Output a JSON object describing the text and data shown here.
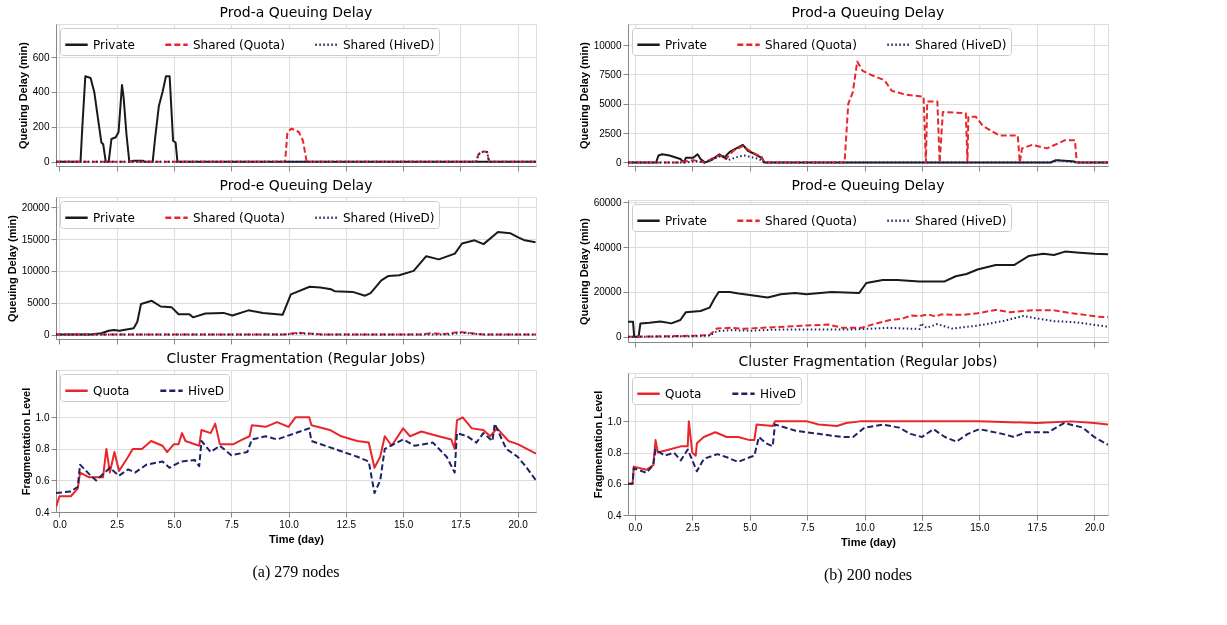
{
  "chart_data": [
    {
      "type": "line",
      "title": "Prod-a Queuing Delay",
      "ylabel": "Queuing Delay (min)",
      "xlim": [
        -0.15,
        20.8
      ],
      "ylim": [
        -25,
        790
      ],
      "xticks": [
        0,
        2.5,
        5,
        7.5,
        10,
        12.5,
        15,
        17.5,
        20
      ],
      "yticks": [
        0,
        200,
        400,
        600
      ],
      "tick_labels": "y",
      "grid": true,
      "legend": "top left",
      "series": [
        {
          "name": "Private",
          "color": "#1a1a1a",
          "line_style": "solid",
          "x": [
            -0.15,
            0.92,
            1.0,
            1.13,
            1.36,
            1.52,
            1.68,
            1.83,
            1.91,
            2.02,
            2.15,
            2.27,
            2.46,
            2.58,
            2.73,
            2.8,
            2.93,
            3.05,
            3.24,
            3.63,
            3.71,
            4.07,
            4.18,
            4.34,
            4.5,
            4.65,
            4.81,
            4.96,
            5.07,
            5.15,
            20.8
          ],
          "values": [
            0,
            0,
            200,
            490,
            480,
            400,
            250,
            110,
            100,
            0,
            0,
            130,
            140,
            170,
            440,
            370,
            150,
            0,
            5,
            5,
            0,
            0,
            140,
            320,
            400,
            490,
            490,
            120,
            110,
            0,
            0
          ]
        },
        {
          "name": "Shared (Quota)",
          "color": "#e8262b",
          "line_style": "dashed",
          "x": [
            -0.15,
            9.85,
            9.95,
            10.13,
            10.45,
            10.63,
            10.79,
            18.2,
            18.28,
            18.43,
            18.67,
            18.75,
            20.8
          ],
          "values": [
            0,
            0,
            170,
            190,
            170,
            120,
            0,
            0,
            40,
            60,
            55,
            0,
            0
          ]
        },
        {
          "name": "Shared (HiveD)",
          "color": "#1f2366",
          "line_style": "dotted",
          "x": [
            -0.15,
            18.2,
            18.28,
            18.43,
            18.67,
            18.75,
            20.8
          ],
          "values": [
            0,
            0,
            40,
            55,
            55,
            0,
            0
          ]
        }
      ]
    },
    {
      "type": "line",
      "title": "Prod-e Queuing Delay",
      "ylabel": "Queuing Delay (min)",
      "xlim": [
        -0.15,
        20.8
      ],
      "ylim": [
        -700,
        21600
      ],
      "xticks": [
        0,
        2.5,
        5,
        7.5,
        10,
        12.5,
        15,
        17.5,
        20
      ],
      "yticks": [
        0,
        5000,
        10000,
        15000,
        20000
      ],
      "tick_labels": "y",
      "grid": true,
      "legend": "top left",
      "series": [
        {
          "name": "Private",
          "color": "#1a1a1a",
          "line_style": "solid",
          "x": [
            -0.15,
            1.36,
            1.83,
            2.15,
            2.38,
            2.62,
            3.24,
            3.4,
            3.56,
            4.03,
            4.42,
            4.89,
            5.2,
            5.67,
            5.83,
            6.37,
            7.16,
            7.55,
            8.25,
            8.88,
            9.74,
            10.1,
            10.92,
            11.39,
            11.86,
            12.01,
            12.8,
            13.34,
            13.58,
            14.05,
            14.36,
            14.83,
            15.46,
            16.01,
            16.56,
            17.26,
            17.57,
            18.12,
            18.51,
            19.14,
            19.69,
            20.0,
            20.31,
            20.78
          ],
          "values": [
            0,
            0,
            200,
            600,
            700,
            600,
            1000,
            2000,
            4800,
            5300,
            4400,
            4300,
            3200,
            3200,
            2700,
            3300,
            3400,
            3000,
            3800,
            3400,
            3100,
            6300,
            7500,
            7400,
            7100,
            6800,
            6700,
            6100,
            6500,
            8500,
            9200,
            9300,
            10000,
            12300,
            11800,
            12700,
            14300,
            14800,
            14200,
            16100,
            15900,
            15300,
            14800,
            14500
          ]
        },
        {
          "name": "Shared (Quota)",
          "color": "#e8262b",
          "line_style": "dashed",
          "x": [
            -0.15,
            9.8,
            10.4,
            11.5,
            15.8,
            16.2,
            16.8,
            17.5,
            18.5,
            20.8
          ],
          "values": [
            0,
            0,
            300,
            0,
            0,
            200,
            100,
            400,
            0,
            0
          ]
        },
        {
          "name": "Shared (HiveD)",
          "color": "#1f2366",
          "line_style": "dotted",
          "x": [
            -0.15,
            9.8,
            10.4,
            11.5,
            17.0,
            17.5,
            18.5,
            20.8
          ],
          "values": [
            0,
            0,
            200,
            0,
            0,
            300,
            0,
            0
          ]
        }
      ]
    },
    {
      "type": "line",
      "title": "Cluster Fragmentation (Regular Jobs)",
      "xlabel": "Time (day)",
      "ylabel": "Fragmentation Level",
      "xlim": [
        -0.15,
        20.8
      ],
      "ylim": [
        0.4,
        1.3
      ],
      "xticks": [
        {
          "value": 0,
          "label": "0.0"
        },
        {
          "value": 2.5,
          "label": "2.5"
        },
        {
          "value": 5,
          "label": "5.0"
        },
        {
          "value": 7.5,
          "label": "7.5"
        },
        {
          "value": 10,
          "label": "10.0"
        },
        {
          "value": 12.5,
          "label": "12.5"
        },
        {
          "value": 15,
          "label": "15.0"
        },
        {
          "value": 17.5,
          "label": "17.5"
        },
        {
          "value": 20,
          "label": "20.0"
        }
      ],
      "yticks": [
        0.4,
        0.6,
        0.8,
        {
          "value": 1,
          "label": "1.0"
        }
      ],
      "grid": true,
      "legend": "top left",
      "annotations": [
        "(a)  279 nodes"
      ],
      "series": [
        {
          "name": "Quota",
          "color": "#e8262b",
          "line_style": "solid",
          "x": [
            -0.15,
            0.0,
            0.5,
            0.8,
            0.9,
            1.3,
            1.9,
            2.05,
            2.2,
            2.4,
            2.6,
            3.0,
            3.2,
            3.6,
            4.0,
            4.5,
            4.7,
            5.0,
            5.2,
            5.35,
            5.5,
            6.1,
            6.2,
            6.6,
            6.8,
            7.0,
            7.6,
            8.0,
            8.3,
            8.4,
            9.0,
            9.5,
            10.0,
            10.3,
            10.9,
            11.0,
            11.8,
            12.3,
            13.0,
            13.5,
            13.75,
            14.0,
            14.2,
            14.5,
            15.0,
            15.3,
            15.8,
            16.3,
            17.1,
            17.25,
            17.35,
            17.6,
            18.0,
            18.5,
            18.8,
            19.1,
            19.6,
            20.0,
            20.4,
            20.8
          ],
          "values": [
            0.43,
            0.5,
            0.5,
            0.55,
            0.65,
            0.62,
            0.62,
            0.8,
            0.65,
            0.78,
            0.66,
            0.75,
            0.8,
            0.8,
            0.85,
            0.82,
            0.78,
            0.83,
            0.83,
            0.9,
            0.85,
            0.82,
            0.92,
            0.9,
            0.96,
            0.83,
            0.83,
            0.86,
            0.88,
            0.95,
            0.94,
            0.97,
            0.94,
            1.0,
            1.0,
            0.95,
            0.92,
            0.88,
            0.85,
            0.84,
            0.68,
            0.75,
            0.88,
            0.82,
            0.93,
            0.88,
            0.91,
            0.89,
            0.86,
            0.8,
            0.98,
            1.0,
            0.93,
            0.92,
            0.88,
            0.93,
            0.85,
            0.83,
            0.8,
            0.77
          ]
        },
        {
          "name": "HiveD",
          "color": "#1f2366",
          "line_style": "dashed",
          "x": [
            -0.15,
            0.5,
            0.8,
            0.9,
            1.3,
            1.6,
            2.2,
            2.6,
            3.0,
            3.3,
            3.8,
            4.5,
            4.8,
            5.3,
            5.9,
            6.1,
            6.2,
            6.6,
            7.0,
            7.5,
            8.2,
            8.4,
            9.0,
            9.5,
            10.5,
            10.9,
            11.0,
            12.0,
            13.0,
            13.5,
            13.75,
            14.0,
            14.2,
            15.0,
            15.5,
            16.3,
            16.9,
            17.25,
            17.35,
            17.8,
            18.2,
            18.5,
            18.9,
            19.0,
            19.5,
            20.0,
            20.4,
            20.8
          ],
          "values": [
            0.52,
            0.53,
            0.56,
            0.7,
            0.64,
            0.6,
            0.68,
            0.63,
            0.67,
            0.65,
            0.7,
            0.72,
            0.68,
            0.72,
            0.73,
            0.69,
            0.85,
            0.78,
            0.82,
            0.76,
            0.78,
            0.86,
            0.88,
            0.86,
            0.91,
            0.93,
            0.85,
            0.8,
            0.75,
            0.72,
            0.52,
            0.6,
            0.8,
            0.86,
            0.82,
            0.84,
            0.75,
            0.65,
            0.9,
            0.88,
            0.84,
            0.9,
            0.85,
            0.96,
            0.8,
            0.75,
            0.68,
            0.6
          ]
        }
      ]
    },
    {
      "type": "line",
      "title": "Prod-a Queuing Delay",
      "ylabel": "Queuing Delay (min)",
      "xlim": [
        -0.3,
        20.6
      ],
      "ylim": [
        -300,
        11800
      ],
      "xticks": [
        0,
        2.5,
        5,
        7.5,
        10,
        12.5,
        15,
        17.5,
        20
      ],
      "yticks": [
        0,
        2500,
        5000,
        7500,
        10000
      ],
      "tick_labels": "y",
      "grid": true,
      "legend": "top left",
      "series": [
        {
          "name": "Private",
          "color": "#1a1a1a",
          "line_style": "solid",
          "x": [
            -0.3,
            0.92,
            1.03,
            1.19,
            1.51,
            1.98,
            2.14,
            2.22,
            2.54,
            2.73,
            2.86,
            3.05,
            3.33,
            3.68,
            3.89,
            4.13,
            4.7,
            4.92,
            5.24,
            5.52,
            5.63,
            18.1,
            18.33,
            19.05,
            19.3,
            20.6
          ],
          "values": [
            0,
            0,
            600,
            700,
            600,
            300,
            0,
            400,
            400,
            700,
            300,
            0,
            200,
            700,
            400,
            900,
            1500,
            1000,
            700,
            400,
            0,
            0,
            200,
            100,
            0,
            0
          ]
        },
        {
          "name": "Shared (Quota)",
          "color": "#e8262b",
          "line_style": "dashed",
          "x": [
            -0.3,
            1.9,
            2.54,
            3.02,
            3.33,
            3.68,
            3.97,
            4.29,
            4.7,
            5.16,
            5.52,
            5.63,
            9.13,
            9.29,
            9.49,
            9.6,
            9.68,
            9.92,
            10.24,
            10.87,
            11.19,
            11.75,
            12.57,
            12.67,
            12.73,
            13.17,
            13.27,
            13.41,
            14.41,
            14.48,
            14.52,
            14.84,
            15.16,
            15.87,
            16.67,
            16.76,
            16.86,
            17.3,
            17.94,
            18.73,
            19.16,
            19.24,
            20.6
          ],
          "values": [
            0,
            0,
            200,
            0,
            300,
            600,
            300,
            1000,
            1400,
            800,
            500,
            0,
            0,
            5000,
            6000,
            7500,
            8600,
            7800,
            7500,
            7000,
            6100,
            5800,
            5600,
            0,
            5200,
            5200,
            0,
            4300,
            4200,
            0,
            3900,
            3900,
            3100,
            2300,
            2300,
            0,
            1200,
            1500,
            1200,
            1900,
            1900,
            0,
            0
          ]
        },
        {
          "name": "Shared (HiveD)",
          "color": "#1f2366",
          "line_style": "dotted",
          "x": [
            -0.3,
            2.22,
            2.7,
            3.02,
            3.81,
            4.05,
            4.52,
            4.76,
            5.4,
            5.63,
            18.1,
            18.41,
            19.2,
            20.6
          ],
          "values": [
            0,
            0,
            100,
            0,
            600,
            200,
            500,
            600,
            300,
            0,
            0,
            200,
            0,
            0
          ]
        }
      ]
    },
    {
      "type": "line",
      "title": "Prod-e Queuing Delay",
      "ylabel": "Queuing Delay (min)",
      "xlim": [
        -0.3,
        20.6
      ],
      "ylim": [
        -2300,
        61000
      ],
      "xticks": [
        0,
        2.5,
        5,
        7.5,
        10,
        12.5,
        15,
        17.5,
        20
      ],
      "yticks": [
        0,
        20000,
        40000,
        60000
      ],
      "tick_labels": "y",
      "grid": true,
      "legend": "top left",
      "series": [
        {
          "name": "Private",
          "color": "#1a1a1a",
          "line_style": "solid",
          "x": [
            -0.3,
            -0.08,
            -0.03,
            0.16,
            0.24,
            0.63,
            1.11,
            1.59,
            1.98,
            2.22,
            2.86,
            3.25,
            3.46,
            3.65,
            4.13,
            4.52,
            5.24,
            5.79,
            6.35,
            6.98,
            7.46,
            8.57,
            9.76,
            10.08,
            10.79,
            11.43,
            12.38,
            13.49,
            13.97,
            14.44,
            14.92,
            15.71,
            16.51,
            17.14,
            17.78,
            18.25,
            18.73,
            19.37,
            20.0,
            20.6
          ],
          "values": [
            6700,
            6700,
            0,
            0,
            6000,
            6300,
            6800,
            6000,
            7500,
            11000,
            11500,
            13000,
            17000,
            20000,
            20000,
            19300,
            18300,
            17500,
            19000,
            19500,
            19000,
            20000,
            19500,
            24000,
            25300,
            25300,
            24700,
            24700,
            27000,
            28000,
            30000,
            32000,
            32000,
            36000,
            37000,
            36500,
            38000,
            37500,
            37000,
            36800
          ]
        },
        {
          "name": "Shared (Quota)",
          "color": "#e8262b",
          "line_style": "dashed",
          "x": [
            -0.3,
            2.6,
            3.25,
            3.57,
            4.13,
            4.76,
            6.03,
            8.41,
            9.05,
            9.84,
            10.48,
            11.11,
            11.59,
            12.06,
            12.38,
            12.78,
            13.1,
            13.33,
            14.29,
            14.92,
            15.71,
            16.35,
            17.3,
            18.25,
            19.05,
            20.16,
            20.6
          ],
          "values": [
            0,
            500,
            800,
            3700,
            4000,
            3600,
            4300,
            5500,
            4000,
            4000,
            5900,
            7500,
            8000,
            9500,
            9200,
            10000,
            9000,
            10000,
            9800,
            10500,
            12000,
            11000,
            11800,
            11800,
            10500,
            9000,
            8800
          ]
        },
        {
          "name": "Shared (HiveD)",
          "color": "#1f2366",
          "line_style": "dotted",
          "x": [
            -0.3,
            2.6,
            3.25,
            3.57,
            4.2,
            5.0,
            6.0,
            7.5,
            9.5,
            11.0,
            12.4,
            12.46,
            12.7,
            13.17,
            13.81,
            14.92,
            16.03,
            16.9,
            17.62,
            18.25,
            19.21,
            20.6
          ],
          "values": [
            0,
            300,
            600,
            2500,
            3000,
            2700,
            3200,
            3300,
            3300,
            4000,
            3500,
            6000,
            4000,
            5700,
            3700,
            5000,
            7000,
            9300,
            8000,
            7000,
            6500,
            4500
          ]
        }
      ]
    },
    {
      "type": "line",
      "title": "Cluster Fragmentation (Regular Jobs)",
      "xlabel": "Time (day)",
      "ylabel": "Fragmentation Level",
      "xlim": [
        -0.3,
        20.6
      ],
      "ylim": [
        0.4,
        1.31
      ],
      "xticks": [
        {
          "value": 0,
          "label": "0.0"
        },
        {
          "value": 2.5,
          "label": "2.5"
        },
        {
          "value": 5,
          "label": "5.0"
        },
        {
          "value": 7.5,
          "label": "7.5"
        },
        {
          "value": 10,
          "label": "10.0"
        },
        {
          "value": 12.5,
          "label": "12.5"
        },
        {
          "value": 15,
          "label": "15.0"
        },
        {
          "value": 17.5,
          "label": "17.5"
        },
        {
          "value": 20,
          "label": "20.0"
        }
      ],
      "yticks": [
        0.4,
        0.6,
        0.8,
        {
          "value": 1,
          "label": "1.0"
        }
      ],
      "grid": true,
      "legend": "top left",
      "annotations": [
        "(b)  200 nodes"
      ],
      "series": [
        {
          "name": "Quota",
          "color": "#e8262b",
          "line_style": "solid",
          "x": [
            -0.3,
            -0.1,
            -0.05,
            0.5,
            0.8,
            0.9,
            1.0,
            1.5,
            2.0,
            2.3,
            2.35,
            2.5,
            2.65,
            2.7,
            3.0,
            3.5,
            4.0,
            4.5,
            5.0,
            5.2,
            5.3,
            6.0,
            6.1,
            7.5,
            8.0,
            8.8,
            9.2,
            9.8,
            15.0,
            17.5,
            19.0,
            20.0,
            20.6
          ],
          "values": [
            0.6,
            0.6,
            0.71,
            0.69,
            0.72,
            0.88,
            0.8,
            0.82,
            0.84,
            0.84,
            1.0,
            0.8,
            0.78,
            0.86,
            0.9,
            0.93,
            0.9,
            0.9,
            0.88,
            0.88,
            0.98,
            0.97,
            1.0,
            1.0,
            0.98,
            0.97,
            0.99,
            1.0,
            1.0,
            0.99,
            1.0,
            0.99,
            0.98
          ]
        },
        {
          "name": "HiveD",
          "color": "#1f2366",
          "line_style": "dashed",
          "x": [
            -0.3,
            -0.1,
            -0.05,
            0.5,
            0.8,
            0.9,
            1.3,
            1.7,
            2.0,
            2.3,
            2.7,
            3.0,
            3.6,
            4.0,
            4.5,
            5.0,
            5.2,
            5.4,
            5.7,
            6.0,
            6.1,
            7.0,
            8.0,
            9.0,
            9.5,
            10.0,
            10.8,
            11.5,
            12.0,
            12.5,
            13.0,
            13.5,
            14.0,
            14.5,
            15.0,
            16.0,
            16.5,
            17.0,
            18.0,
            18.7,
            19.5,
            20.0,
            20.6
          ],
          "values": [
            0.6,
            0.6,
            0.7,
            0.67,
            0.72,
            0.82,
            0.78,
            0.8,
            0.75,
            0.82,
            0.68,
            0.76,
            0.79,
            0.77,
            0.74,
            0.77,
            0.78,
            0.9,
            0.86,
            0.84,
            0.98,
            0.94,
            0.92,
            0.9,
            0.9,
            0.96,
            0.98,
            0.96,
            0.92,
            0.9,
            0.95,
            0.9,
            0.87,
            0.92,
            0.95,
            0.92,
            0.9,
            0.93,
            0.93,
            0.99,
            0.96,
            0.9,
            0.85
          ]
        }
      ]
    }
  ]
}
